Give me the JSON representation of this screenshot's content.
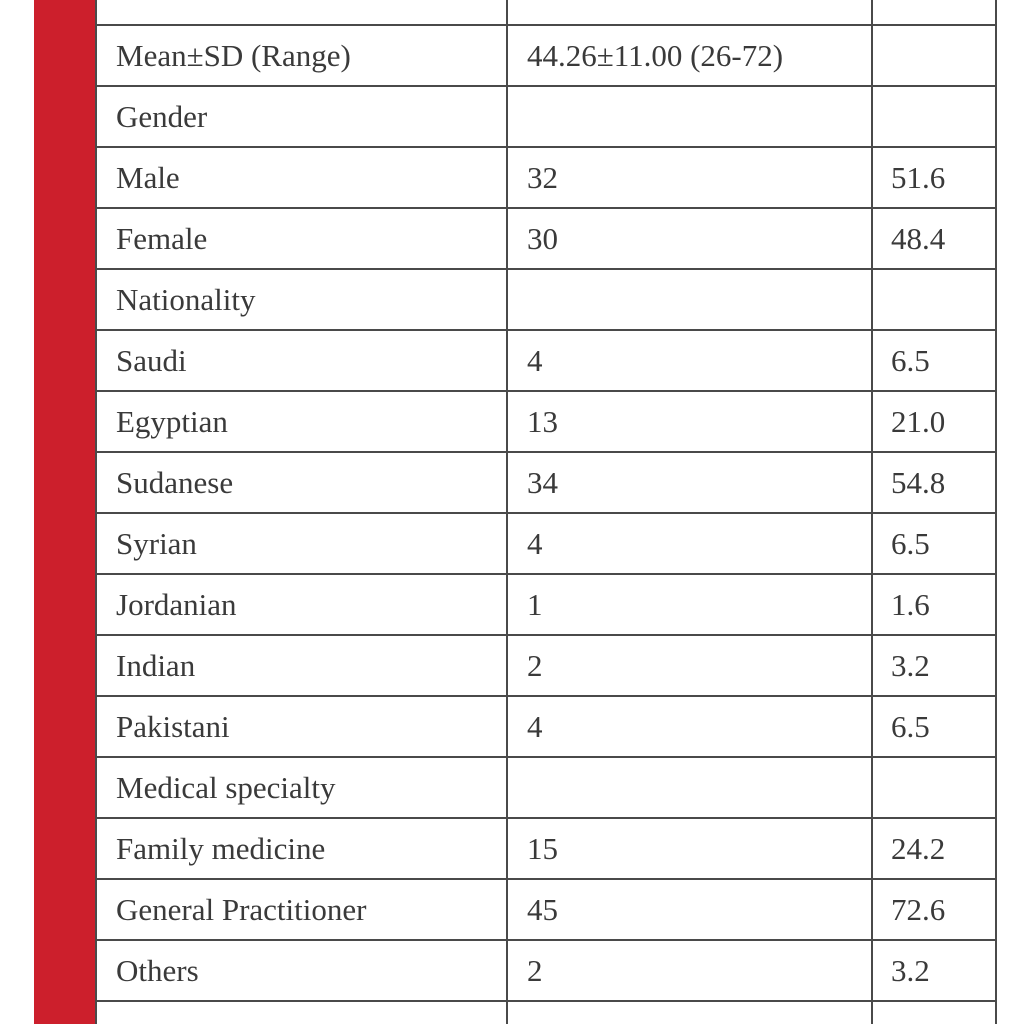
{
  "table": {
    "rows": [
      {
        "label": "",
        "n": "",
        "pct": ""
      },
      {
        "label": "Mean±SD (Range)",
        "n": "44.26±11.00 (26-72)",
        "pct": ""
      },
      {
        "label": "Gender",
        "n": "",
        "pct": ""
      },
      {
        "label": "Male",
        "n": "32",
        "pct": "51.6"
      },
      {
        "label": "Female",
        "n": "30",
        "pct": "48.4"
      },
      {
        "label": "Nationality",
        "n": "",
        "pct": ""
      },
      {
        "label": "Saudi",
        "n": "4",
        "pct": "6.5"
      },
      {
        "label": "Egyptian",
        "n": "13",
        "pct": "21.0"
      },
      {
        "label": "Sudanese",
        "n": "34",
        "pct": "54.8"
      },
      {
        "label": "Syrian",
        "n": "4",
        "pct": "6.5"
      },
      {
        "label": "Jordanian",
        "n": "1",
        "pct": "1.6"
      },
      {
        "label": "Indian",
        "n": "2",
        "pct": "3.2"
      },
      {
        "label": "Pakistani",
        "n": "4",
        "pct": "6.5"
      },
      {
        "label": "Medical specialty",
        "n": "",
        "pct": ""
      },
      {
        "label": "Family medicine",
        "n": "15",
        "pct": "24.2"
      },
      {
        "label": "General Practitioner",
        "n": "45",
        "pct": "72.6"
      },
      {
        "label": "Others",
        "n": "2",
        "pct": "3.2"
      },
      {
        "label": "",
        "n": "",
        "pct": ""
      }
    ]
  },
  "colors": {
    "accent_bar": "#cc1f2c",
    "border": "#4a4a4a",
    "text": "#3a3a3a"
  }
}
